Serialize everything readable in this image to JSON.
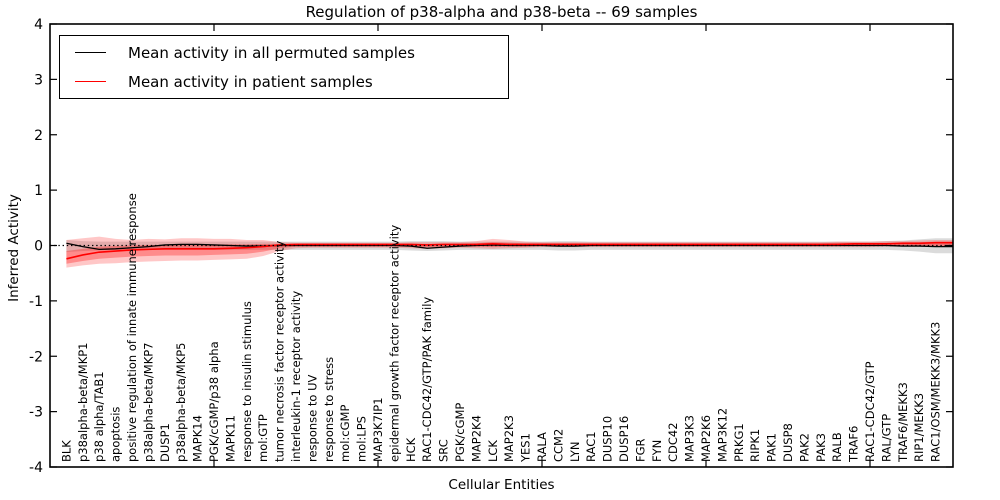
{
  "chart_data": {
    "type": "line",
    "title": "Regulation of p38-alpha and p38-beta -- 69 samples",
    "xlabel": "Cellular Entities",
    "ylabel": "Inferred Activity",
    "ylim": [
      -4,
      4
    ],
    "yticks": [
      -4,
      -3,
      -2,
      -1,
      0,
      1,
      2,
      3,
      4
    ],
    "grid": false,
    "legend_position": "upper left",
    "zero_line": "dotted",
    "categories": [
      "BLK",
      "p38alpha-beta/MKP1",
      "p38 alpha/TAB1",
      "apoptosis",
      "positive regulation of innate immune response",
      "p38alpha-beta/MKP7",
      "DUSP1",
      "p38alpha-beta/MKP5",
      "MAPK14",
      "PGK/cGMP/p38 alpha",
      "MAPK11",
      "response to insulin stimulus",
      "mol:GTP",
      "tumor necrosis factor receptor activity",
      "interleukin-1 receptor activity",
      "response to UV",
      "response to stress",
      "mol:cGMP",
      "mol:LPS",
      "MAP3K7IP1",
      "epidermal growth factor receptor activity",
      "HCK",
      "RAC1-CDC42/GTP/PAK family",
      "SRC",
      "PGK/cGMP",
      "MAP2K4",
      "LCK",
      "MAP2K3",
      "YES1",
      "RALA",
      "CCM2",
      "LYN",
      "RAC1",
      "DUSP10",
      "DUSP16",
      "FGR",
      "FYN",
      "CDC42",
      "MAP3K3",
      "MAP2K6",
      "MAP3K12",
      "PRKG1",
      "RIPK1",
      "PAK1",
      "DUSP8",
      "PAK2",
      "PAK3",
      "RALB",
      "TRAF6",
      "RAC1-CDC42/GTP",
      "RAL/GTP",
      "TRAF6/MEKK3",
      "RIP1/MEKK3",
      "RAC1/OSM/MEKK3/MKK3"
    ],
    "series": [
      {
        "name": "Mean activity in all permuted samples",
        "color": "#000000",
        "width": 1.3,
        "values": [
          0.04,
          -0.02,
          -0.07,
          -0.06,
          -0.04,
          -0.02,
          0.01,
          0.02,
          0.02,
          0.01,
          0,
          -0.01,
          -0.01,
          0,
          0,
          0,
          0,
          0,
          0,
          0,
          0,
          -0.01,
          -0.05,
          -0.03,
          -0.01,
          0,
          0.01,
          0,
          0,
          0,
          -0.01,
          -0.01,
          0,
          0,
          0,
          0,
          0,
          0,
          0,
          0,
          0,
          0,
          0,
          0,
          0,
          0,
          0,
          0,
          0,
          0,
          0,
          -0.01,
          -0.01,
          -0.02
        ]
      },
      {
        "name": "Mean activity in patient samples",
        "color": "#ff0000",
        "width": 1.6,
        "values": [
          -0.24,
          -0.17,
          -0.12,
          -0.1,
          -0.08,
          -0.07,
          -0.06,
          -0.06,
          -0.06,
          -0.06,
          -0.05,
          -0.04,
          -0.02,
          0.01,
          0.02,
          0.02,
          0.02,
          0.02,
          0.02,
          0.02,
          0.02,
          0.02,
          0.01,
          0.02,
          0.02,
          0.02,
          0.03,
          0.02,
          0.02,
          0.02,
          0.02,
          0.02,
          0.02,
          0.02,
          0.02,
          0.02,
          0.02,
          0.02,
          0.02,
          0.02,
          0.02,
          0.02,
          0.02,
          0.02,
          0.02,
          0.02,
          0.02,
          0.02,
          0.03,
          0.03,
          0.03,
          0.04,
          0.04,
          0.05
        ]
      }
    ],
    "bands": [
      {
        "name": "permuted-samples-range",
        "fill": "rgba(0,0,0,0.14)",
        "low": [
          -0.12,
          -0.1,
          -0.09,
          -0.08,
          -0.08,
          -0.08,
          -0.08,
          -0.08,
          -0.08,
          -0.08,
          -0.08,
          -0.08,
          -0.08,
          -0.08,
          -0.08,
          -0.08,
          -0.08,
          -0.08,
          -0.08,
          -0.08,
          -0.08,
          -0.09,
          -0.1,
          -0.09,
          -0.08,
          -0.08,
          -0.08,
          -0.08,
          -0.08,
          -0.08,
          -0.09,
          -0.09,
          -0.08,
          -0.08,
          -0.08,
          -0.08,
          -0.08,
          -0.08,
          -0.08,
          -0.08,
          -0.08,
          -0.08,
          -0.08,
          -0.08,
          -0.08,
          -0.08,
          -0.08,
          -0.08,
          -0.08,
          -0.08,
          -0.08,
          -0.09,
          -0.11,
          -0.14
        ],
        "high": [
          0.1,
          0.08,
          0.07,
          0.07,
          0.07,
          0.07,
          0.07,
          0.07,
          0.07,
          0.07,
          0.07,
          0.07,
          0.07,
          0.07,
          0.07,
          0.07,
          0.07,
          0.07,
          0.07,
          0.07,
          0.07,
          0.08,
          0.08,
          0.08,
          0.07,
          0.07,
          0.07,
          0.07,
          0.07,
          0.07,
          0.08,
          0.08,
          0.07,
          0.07,
          0.07,
          0.07,
          0.07,
          0.07,
          0.07,
          0.07,
          0.07,
          0.07,
          0.07,
          0.07,
          0.07,
          0.07,
          0.07,
          0.07,
          0.07,
          0.07,
          0.08,
          0.09,
          0.11,
          0.13
        ]
      },
      {
        "name": "patient-samples-range-outer",
        "fill": "rgba(255,0,0,0.22)",
        "low": [
          -0.4,
          -0.36,
          -0.33,
          -0.32,
          -0.3,
          -0.29,
          -0.28,
          -0.27,
          -0.27,
          -0.26,
          -0.25,
          -0.24,
          -0.19,
          -0.1,
          -0.05,
          -0.04,
          -0.04,
          -0.04,
          -0.04,
          -0.04,
          -0.04,
          -0.05,
          -0.06,
          -0.05,
          -0.04,
          -0.05,
          -0.06,
          -0.05,
          -0.04,
          -0.03,
          -0.03,
          -0.03,
          -0.03,
          -0.03,
          -0.03,
          -0.03,
          -0.03,
          -0.03,
          -0.03,
          -0.03,
          -0.03,
          -0.03,
          -0.03,
          -0.03,
          -0.03,
          -0.03,
          -0.03,
          -0.03,
          -0.03,
          -0.03,
          -0.02,
          -0.02,
          -0.02,
          -0.02
        ],
        "high": [
          0.1,
          0.13,
          0.16,
          0.12,
          0.1,
          0.12,
          0.11,
          0.13,
          0.13,
          0.12,
          0.12,
          0.1,
          0.1,
          0.06,
          0.05,
          0.05,
          0.05,
          0.05,
          0.05,
          0.05,
          0.05,
          0.06,
          0.06,
          0.06,
          0.06,
          0.08,
          0.12,
          0.1,
          0.07,
          0.06,
          0.06,
          0.06,
          0.06,
          0.06,
          0.06,
          0.06,
          0.06,
          0.06,
          0.06,
          0.06,
          0.06,
          0.06,
          0.06,
          0.06,
          0.06,
          0.06,
          0.06,
          0.07,
          0.07,
          0.07,
          0.08,
          0.08,
          0.09,
          0.1
        ]
      },
      {
        "name": "patient-samples-range-inner",
        "fill": "rgba(255,0,0,0.30)",
        "low": [
          -0.33,
          -0.28,
          -0.24,
          -0.22,
          -0.2,
          -0.19,
          -0.18,
          -0.18,
          -0.18,
          -0.17,
          -0.16,
          -0.15,
          -0.11,
          -0.05,
          -0.02,
          -0.02,
          -0.02,
          -0.02,
          -0.02,
          -0.02,
          -0.02,
          -0.02,
          -0.03,
          -0.02,
          -0.02,
          -0.02,
          -0.03,
          -0.02,
          -0.02,
          -0.01,
          -0.01,
          -0.01,
          -0.01,
          -0.01,
          -0.01,
          -0.01,
          -0.01,
          -0.01,
          -0.01,
          -0.01,
          -0.01,
          -0.01,
          -0.01,
          -0.01,
          -0.01,
          -0.01,
          -0.01,
          -0.01,
          -0.01,
          -0.01,
          -0.01,
          -0.01,
          -0.01,
          -0.01
        ],
        "high": [
          -0.1,
          -0.06,
          -0.02,
          -0.01,
          0.0,
          0.01,
          0.01,
          0.02,
          0.02,
          0.02,
          0.02,
          0.02,
          0.03,
          0.03,
          0.03,
          0.03,
          0.03,
          0.03,
          0.03,
          0.03,
          0.03,
          0.03,
          0.03,
          0.03,
          0.03,
          0.04,
          0.06,
          0.05,
          0.04,
          0.04,
          0.04,
          0.04,
          0.04,
          0.04,
          0.04,
          0.04,
          0.04,
          0.04,
          0.04,
          0.04,
          0.04,
          0.04,
          0.04,
          0.04,
          0.04,
          0.04,
          0.04,
          0.05,
          0.05,
          0.05,
          0.05,
          0.06,
          0.06,
          0.07
        ]
      }
    ]
  }
}
